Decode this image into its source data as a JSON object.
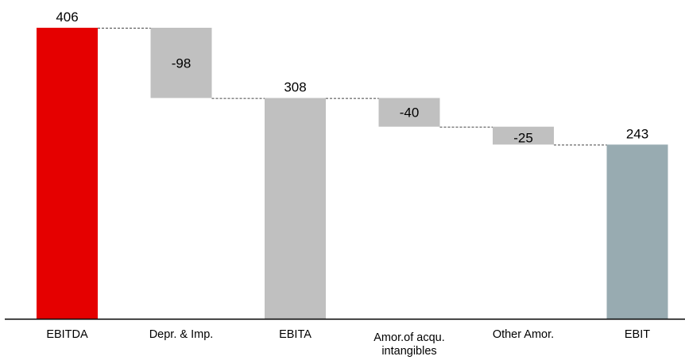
{
  "chart_data": {
    "type": "waterfall",
    "title": "",
    "xlabel": "",
    "ylabel": "",
    "ylim": [
      0,
      406
    ],
    "grid": false,
    "legend": "none",
    "categories": [
      [
        "EBITDA"
      ],
      [
        "Depr. & Imp."
      ],
      [
        "EBITA"
      ],
      [
        "Amor.of acqu.",
        "intangibles"
      ],
      [
        "Other Amor."
      ],
      [
        "EBIT"
      ]
    ],
    "steps": [
      {
        "category": "EBITDA",
        "kind": "total",
        "value": 406,
        "label": "406",
        "color": "#e50000"
      },
      {
        "category": "Depr. & Imp.",
        "kind": "delta",
        "value": -98,
        "label": "-98",
        "color": "#c0c0c0"
      },
      {
        "category": "EBITA",
        "kind": "total",
        "value": 308,
        "label": "308",
        "color": "#c0c0c0"
      },
      {
        "category": "Amor.of acqu. intangibles",
        "kind": "delta",
        "value": -40,
        "label": "-40",
        "color": "#c0c0c0"
      },
      {
        "category": "Other Amor.",
        "kind": "delta",
        "value": -25,
        "label": "-25",
        "color": "#c0c0c0"
      },
      {
        "category": "EBIT",
        "kind": "total",
        "value": 243,
        "label": "243",
        "color": "#98abb1"
      }
    ]
  }
}
